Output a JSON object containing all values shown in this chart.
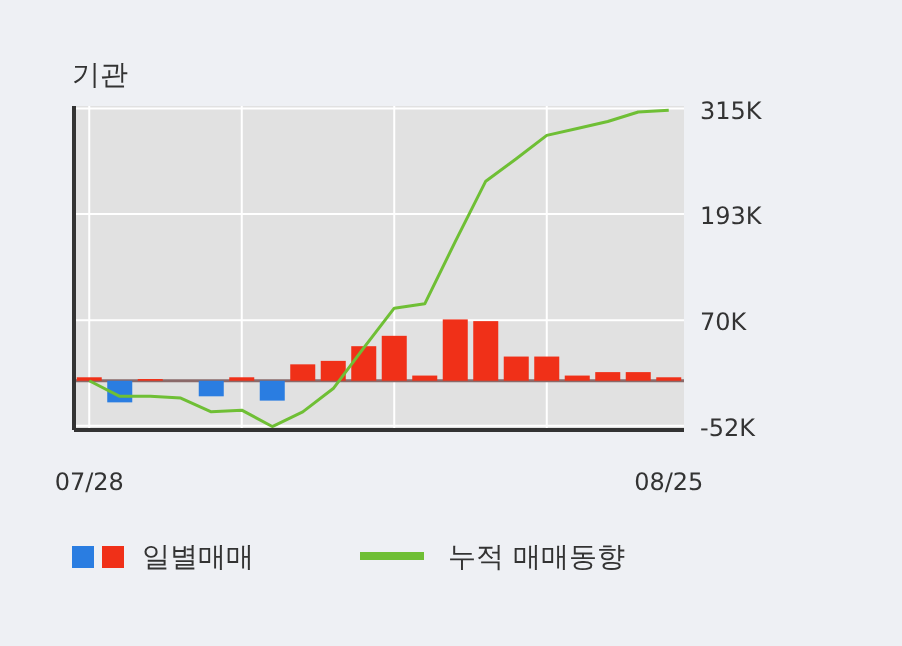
{
  "chart_data": {
    "type": "bar",
    "title": "기관",
    "categories": [
      "07/28",
      null,
      null,
      null,
      null,
      null,
      null,
      null,
      null,
      null,
      null,
      null,
      null,
      null,
      null,
      null,
      null,
      null,
      null,
      "08/25"
    ],
    "series": [
      {
        "name": "일별매매",
        "colors": [
          "#f03018",
          "#2a7de1",
          "#f03018",
          "#f03018",
          "#2a7de1",
          "#f03018",
          "#2a7de1",
          "#f03018",
          "#f03018",
          "#f03018",
          "#f03018",
          "#f03018",
          "#f03018",
          "#f03018",
          "#f03018",
          "#f03018",
          "#f03018",
          "#f03018",
          "#f03018",
          "#f03018"
        ],
        "values": [
          4,
          -25,
          2,
          0,
          -18,
          4,
          -23,
          19,
          23,
          40,
          52,
          6,
          71,
          69,
          28,
          28,
          6,
          10,
          10,
          4
        ]
      },
      {
        "name": "누적 매매동향",
        "type": "line",
        "color": "#6fbf35",
        "values": [
          0,
          -18,
          -18,
          -20,
          -36,
          -34,
          -53,
          -36,
          -9,
          38,
          84,
          89,
          161,
          231,
          257,
          284,
          292,
          300,
          311,
          313
        ]
      }
    ],
    "ylim": [
      -57,
      318
    ],
    "yticks": [
      {
        "value": -52,
        "label": "-52K"
      },
      {
        "value": 70,
        "label": "70K"
      },
      {
        "value": 193,
        "label": "193K"
      },
      {
        "value": 315,
        "label": "315K"
      }
    ],
    "grid": true,
    "legend": "bottom",
    "marker": "none"
  }
}
